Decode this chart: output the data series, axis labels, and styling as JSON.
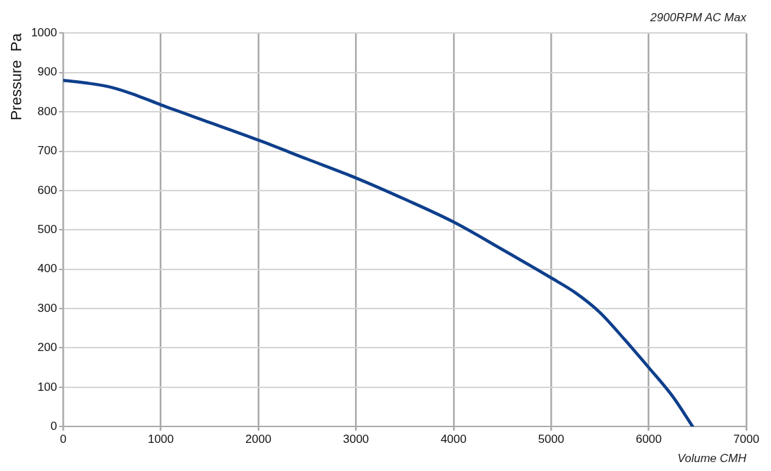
{
  "chart_data": {
    "type": "line",
    "title": "2900RPM AC Max",
    "xlabel": "Volume CMH",
    "ylabel": "Pressure  Pa",
    "x": [
      0,
      250,
      500,
      750,
      1000,
      1500,
      2000,
      2500,
      3000,
      3500,
      4000,
      4500,
      5000,
      5250,
      5500,
      5750,
      6000,
      6250,
      6450
    ],
    "series": [
      {
        "color": "#0e3f8c",
        "values": [
          880,
          873,
          862,
          842,
          818,
          773,
          728,
          680,
          632,
          578,
          520,
          450,
          378,
          340,
          290,
          222,
          150,
          75,
          0
        ]
      }
    ],
    "xlim": [
      0,
      7000
    ],
    "xticks": [
      0,
      1000,
      2000,
      3000,
      4000,
      5000,
      6000,
      7000
    ],
    "ylim": [
      0,
      1000
    ],
    "yticks": [
      0,
      100,
      200,
      300,
      400,
      500,
      600,
      700,
      800,
      900,
      1000
    ],
    "grid": true,
    "legend": false,
    "marker": "none",
    "line_style": "solid"
  }
}
